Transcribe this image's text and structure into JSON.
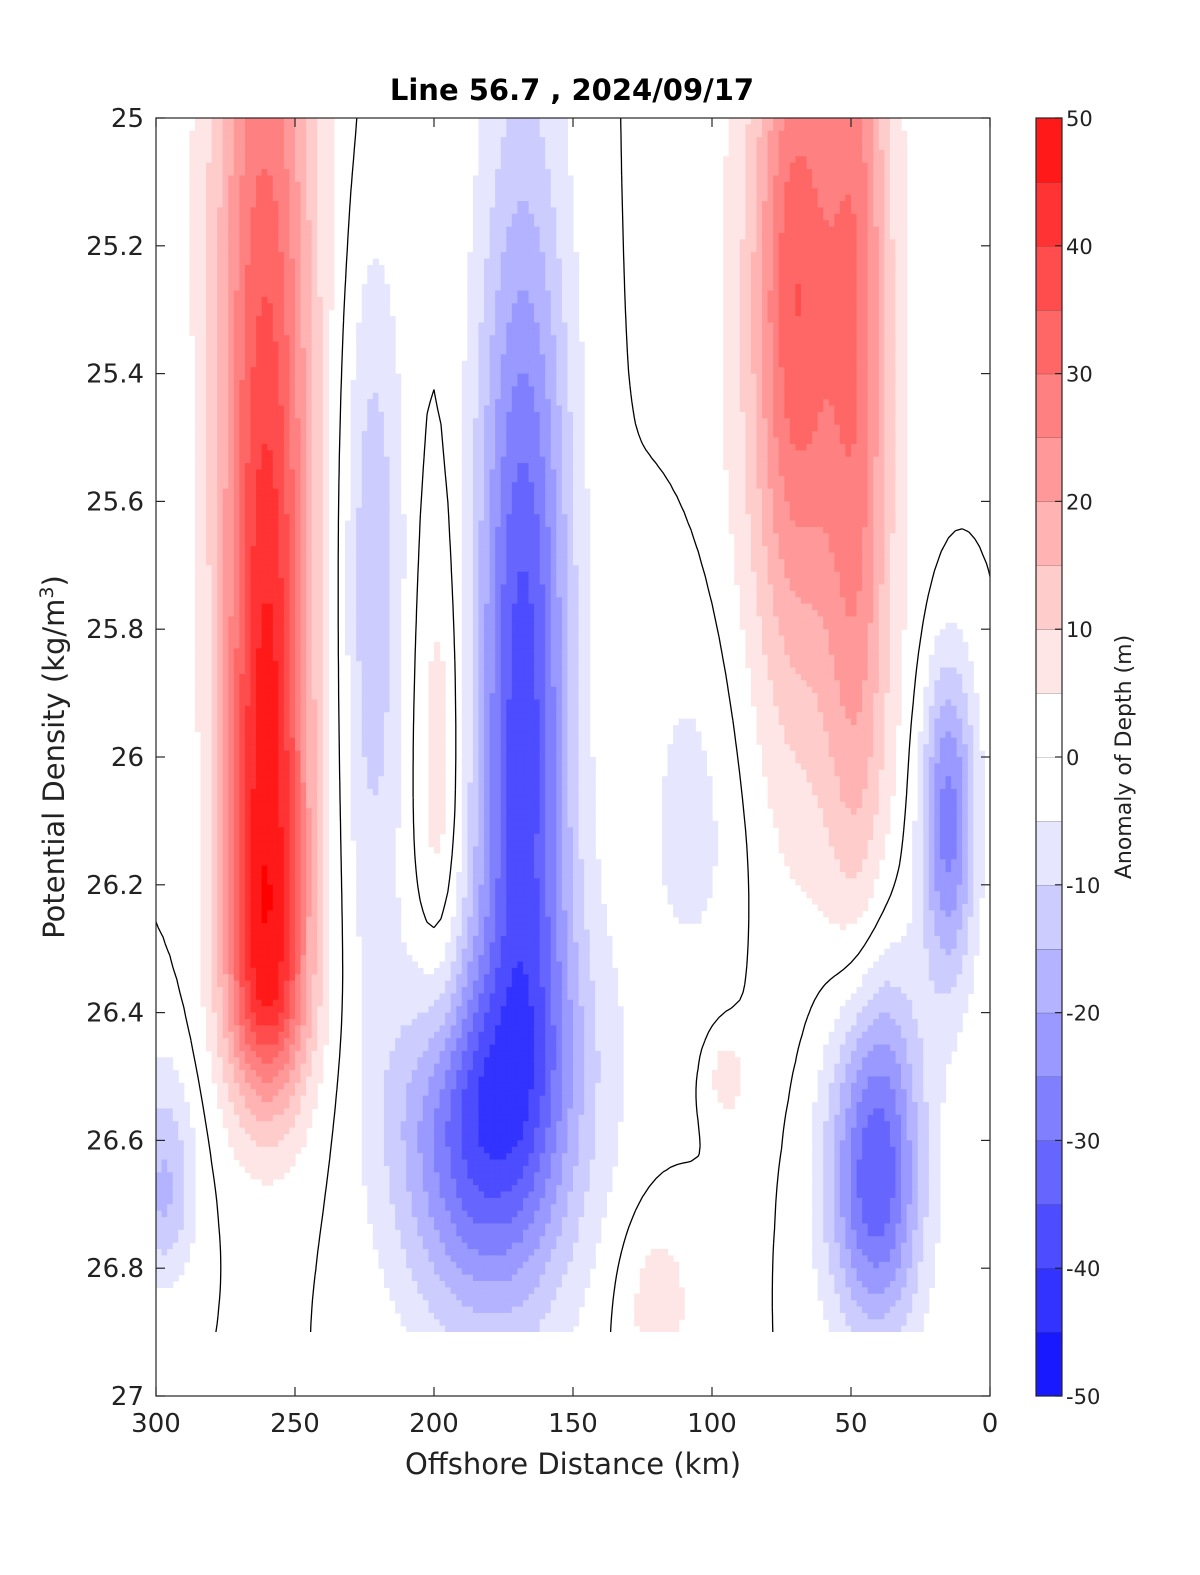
{
  "chart_data": {
    "type": "heatmap",
    "subtype": "filled-contour",
    "title": "Line 56.7 , 2024/09/17",
    "xlabel": "Offshore Distance (km)",
    "ylabel_base": "Potential Density (kg/m",
    "ylabel_sup": "3",
    "ylabel_close": ")",
    "xlim": [
      300,
      0
    ],
    "x_reversed": true,
    "ylim": [
      25,
      27
    ],
    "y_reversed": true,
    "x_ticks": [
      300,
      250,
      200,
      150,
      100,
      50,
      0
    ],
    "y_ticks": [
      "25",
      "25.2",
      "25.4",
      "25.6",
      "25.8",
      "26",
      "26.2",
      "26.4",
      "26.6",
      "26.8",
      "27"
    ],
    "y_tick_values": [
      25,
      25.2,
      25.4,
      25.6,
      25.8,
      26,
      26.2,
      26.4,
      26.6,
      26.8,
      27
    ],
    "colorbar": {
      "label": "Anomaly of Depth (m)",
      "range": [
        -50,
        50
      ],
      "tick_labels": [
        "50",
        "40",
        "30",
        "20",
        "10",
        "0",
        "-10",
        "-20",
        "-30",
        "-40",
        "-50"
      ],
      "tick_values": [
        50,
        40,
        30,
        20,
        10,
        0,
        -10,
        -20,
        -30,
        -40,
        -50
      ],
      "level_step": 5,
      "positive_color": "#ff0000",
      "negative_color": "#0000ff",
      "neutral_color": "#ffffff"
    },
    "data_bottom_density": 26.9,
    "zero_contour_color": "#000000",
    "features": [
      {
        "x": 260,
        "y": 26.32,
        "peak": 48,
        "sx": 11,
        "sy_shallow": 0.75,
        "sy_deep": 0.16
      },
      {
        "x": 262,
        "y": 25.05,
        "peak": 18,
        "sx": 15,
        "sy_shallow": 0.3,
        "sy_deep": 0.6
      },
      {
        "x": 168,
        "y": 25.95,
        "peak": -38,
        "sx": 12,
        "sy_shallow": 0.6,
        "sy_deep": 0.4
      },
      {
        "x": 170,
        "y": 26.5,
        "peak": -20,
        "sx": 22,
        "sy_shallow": 0.2,
        "sy_deep": 0.25
      },
      {
        "x": 222,
        "y": 25.7,
        "peak": -14,
        "sx": 8,
        "sy_shallow": 0.35,
        "sy_deep": 0.45
      },
      {
        "x": 198,
        "y": 26.05,
        "peak": 9,
        "sx": 6,
        "sy_shallow": 0.3,
        "sy_deep": 0.3
      },
      {
        "x": 190,
        "y": 26.6,
        "peak": -22,
        "sx": 18,
        "sy_shallow": 0.15,
        "sy_deep": 0.2
      },
      {
        "x": 70,
        "y": 25.25,
        "peak": 24,
        "sx": 10,
        "sy_shallow": 0.35,
        "sy_deep": 0.35
      },
      {
        "x": 48,
        "y": 25.2,
        "peak": 20,
        "sx": 8,
        "sy_shallow": 0.4,
        "sy_deep": 0.8
      },
      {
        "x": 65,
        "y": 25.6,
        "peak": 12,
        "sx": 24,
        "sy_shallow": 0.7,
        "sy_deep": 0.45
      },
      {
        "x": 42,
        "y": 26.65,
        "peak": -38,
        "sx": 12,
        "sy_shallow": 0.22,
        "sy_deep": 0.18
      },
      {
        "x": 15,
        "y": 26.1,
        "peak": -28,
        "sx": 7,
        "sy_shallow": 0.18,
        "sy_deep": 0.18
      },
      {
        "x": 120,
        "y": 26.85,
        "peak": 8,
        "sx": 10,
        "sy_shallow": 0.1,
        "sy_deep": 0.12
      },
      {
        "x": 95,
        "y": 26.5,
        "peak": 8,
        "sx": 5,
        "sy_shallow": 0.05,
        "sy_deep": 0.05
      },
      {
        "x": 297,
        "y": 26.68,
        "peak": -16,
        "sx": 8,
        "sy_shallow": 0.14,
        "sy_deep": 0.1
      },
      {
        "x": 105,
        "y": 26.1,
        "peak": -8,
        "sx": 15,
        "sy_shallow": 0.3,
        "sy_deep": 0.2
      }
    ]
  }
}
